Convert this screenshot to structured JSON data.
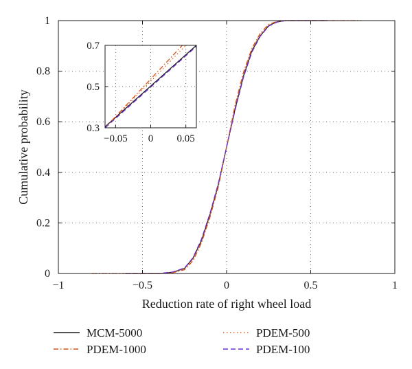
{
  "chart_data": {
    "type": "line",
    "title": "",
    "xlabel": "Reduction rate of right wheel load",
    "ylabel": "Cumulative probability",
    "xlim": [
      -1,
      1
    ],
    "ylim": [
      0,
      1
    ],
    "xticks": [
      -1,
      -0.5,
      0,
      0.5,
      1
    ],
    "xtick_labels": [
      "−1",
      "−0.5",
      "0",
      "0.5",
      "1"
    ],
    "yticks": [
      0,
      0.2,
      0.4,
      0.6,
      0.8,
      1
    ],
    "ytick_labels": [
      "0",
      "0.2",
      "0.4",
      "0.6",
      "0.8",
      "1"
    ],
    "grid": true,
    "legend_position": "below",
    "series": [
      {
        "name": "MCM-5000",
        "color": "#1a1a1a",
        "dash": "solid",
        "x": [
          -0.6,
          -0.4,
          -0.32,
          -0.25,
          -0.2,
          -0.15,
          -0.1,
          -0.05,
          0,
          0.05,
          0.1,
          0.15,
          0.2,
          0.25,
          0.3,
          0.35,
          0.6
        ],
        "y": [
          0,
          0,
          0.005,
          0.02,
          0.06,
          0.13,
          0.23,
          0.35,
          0.5,
          0.65,
          0.78,
          0.88,
          0.94,
          0.98,
          0.995,
          1,
          1
        ]
      },
      {
        "name": "PDEM-500",
        "color": "#e8611a",
        "dash": "dotted",
        "x": [
          -0.8,
          -0.4,
          -0.32,
          -0.25,
          -0.2,
          -0.15,
          -0.1,
          -0.05,
          0,
          0.05,
          0.1,
          0.15,
          0.2,
          0.25,
          0.3,
          0.35,
          0.8
        ],
        "y": [
          0,
          0,
          0.004,
          0.018,
          0.055,
          0.125,
          0.225,
          0.345,
          0.5,
          0.66,
          0.79,
          0.885,
          0.945,
          0.982,
          0.996,
          1,
          1
        ]
      },
      {
        "name": "PDEM-1000",
        "color": "#d4531a",
        "dash": "dashdot",
        "x": [
          -0.8,
          -0.4,
          -0.32,
          -0.25,
          -0.2,
          -0.15,
          -0.1,
          -0.05,
          0,
          0.05,
          0.1,
          0.15,
          0.2,
          0.25,
          0.3,
          0.35,
          0.8
        ],
        "y": [
          0,
          0,
          0.003,
          0.015,
          0.05,
          0.12,
          0.22,
          0.34,
          0.5,
          0.665,
          0.795,
          0.89,
          0.95,
          0.985,
          0.997,
          1,
          1
        ]
      },
      {
        "name": "PDEM-100",
        "color": "#6a2fd6",
        "dash": "dashed",
        "x": [
          -0.6,
          -0.4,
          -0.32,
          -0.25,
          -0.2,
          -0.15,
          -0.1,
          -0.05,
          0,
          0.05,
          0.1,
          0.15,
          0.2,
          0.25,
          0.3,
          0.35,
          0.6
        ],
        "y": [
          0,
          0,
          0.006,
          0.022,
          0.062,
          0.135,
          0.235,
          0.355,
          0.5,
          0.645,
          0.775,
          0.875,
          0.938,
          0.978,
          0.994,
          1,
          1
        ]
      }
    ],
    "inset": {
      "xlim": [
        -0.065,
        0.065
      ],
      "ylim": [
        0.3,
        0.7
      ],
      "xticks": [
        -0.05,
        0,
        0.05
      ],
      "xtick_labels": [
        "−0.05",
        "0",
        "0.05"
      ],
      "yticks": [
        0.3,
        0.5,
        0.7
      ],
      "ytick_labels": [
        "0.3",
        "0.5",
        "0.7"
      ],
      "grid": true,
      "series": [
        {
          "name": "MCM-5000",
          "x": [
            -0.065,
            0.065
          ],
          "y": [
            0.305,
            0.7
          ]
        },
        {
          "name": "PDEM-500",
          "x": [
            -0.065,
            0.05
          ],
          "y": [
            0.3,
            0.7
          ]
        },
        {
          "name": "PDEM-1000",
          "x": [
            -0.065,
            0.045
          ],
          "y": [
            0.3,
            0.7
          ]
        },
        {
          "name": "PDEM-100",
          "x": [
            -0.065,
            0.065
          ],
          "y": [
            0.3,
            0.695
          ]
        }
      ]
    }
  }
}
